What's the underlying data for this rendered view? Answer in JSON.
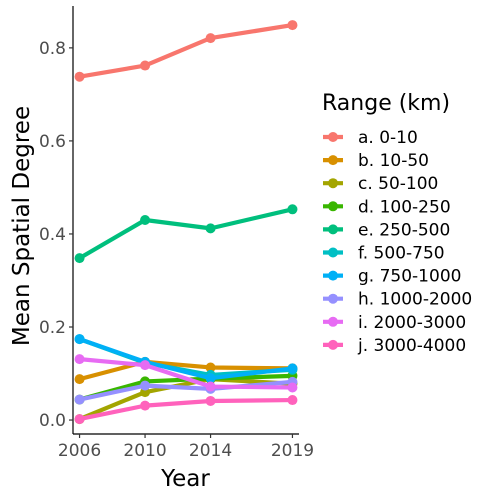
{
  "chart_data": {
    "type": "line",
    "title": "",
    "xlabel": "Year",
    "ylabel": "Mean Spatial Degree",
    "x": [
      2006,
      2010,
      2014,
      2019
    ],
    "x_ticks": [
      "2006",
      "2010",
      "2014",
      "2019"
    ],
    "y_ticks": [
      "0.0",
      "0.2",
      "0.4",
      "0.6",
      "0.8"
    ],
    "y_tick_values": [
      0.0,
      0.2,
      0.4,
      0.6,
      0.8
    ],
    "xlim": [
      2005.6,
      2019.4
    ],
    "ylim": [
      -0.03,
      0.89
    ],
    "grid": false,
    "legend": {
      "title": "Range (km)",
      "placement": "right"
    },
    "series": [
      {
        "name": "a. 0-10",
        "color": "#F8766D",
        "values": [
          0.738,
          0.762,
          0.821,
          0.849
        ]
      },
      {
        "name": "b. 10-50",
        "color": "#D89000",
        "values": [
          0.088,
          0.125,
          0.113,
          0.111
        ]
      },
      {
        "name": "c. 50-100",
        "color": "#A3A500",
        "values": [
          0.002,
          0.06,
          0.088,
          0.078
        ]
      },
      {
        "name": "d. 100-250",
        "color": "#39B600",
        "values": [
          0.044,
          0.083,
          0.089,
          0.095
        ]
      },
      {
        "name": "e. 250-500",
        "color": "#00BF7D",
        "values": [
          0.348,
          0.43,
          0.412,
          0.453
        ]
      },
      {
        "name": "f. 500-750",
        "color": "#00BFC4",
        "values": [
          0.174,
          0.123,
          0.097,
          0.108
        ]
      },
      {
        "name": "g. 750-1000",
        "color": "#00B0F6",
        "values": [
          0.174,
          0.125,
          0.09,
          0.111
        ]
      },
      {
        "name": "h. 1000-2000",
        "color": "#9590FF",
        "values": [
          0.044,
          0.074,
          0.067,
          0.082
        ]
      },
      {
        "name": "i. 2000-3000",
        "color": "#E76BF3",
        "values": [
          0.131,
          0.118,
          0.072,
          0.07
        ]
      },
      {
        "name": "j. 3000-4000",
        "color": "#FF62BC",
        "values": [
          0.002,
          0.031,
          0.041,
          0.043
        ]
      }
    ]
  }
}
